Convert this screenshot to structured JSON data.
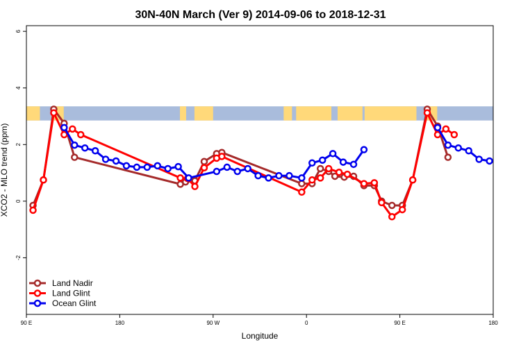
{
  "chart_data": {
    "type": "line",
    "title": "30N-40N March (Ver 9)   2014-09-06 to 2018-12-31",
    "xlabel": "Longitude",
    "ylabel": "XCO2 - MLO trend (ppm)",
    "xlim": [
      90,
      540
    ],
    "ylim": [
      -4,
      6.2
    ],
    "x_ticks": [
      {
        "value": 90,
        "label": "90 E"
      },
      {
        "value": 180,
        "label": "180"
      },
      {
        "value": 270,
        "label": "90 W"
      },
      {
        "value": 360,
        "label": "0"
      },
      {
        "value": 450,
        "label": "90 E"
      },
      {
        "value": 540,
        "label": "180"
      }
    ],
    "y_ticks": [
      {
        "value": -2,
        "label": "-2"
      },
      {
        "value": 0,
        "label": "0"
      },
      {
        "value": 2,
        "label": "2"
      },
      {
        "value": 4,
        "label": "4"
      },
      {
        "value": 6,
        "label": "6"
      }
    ],
    "map_band": {
      "y_range": [
        2.85,
        3.35
      ],
      "ocean_color": "#A9BCDC",
      "land_color": "#FFD97A"
    },
    "legend_position": "bottom-left",
    "series": [
      {
        "name": "Land Nadir",
        "color": "#A52A2A",
        "points": [
          [
            96.4,
            -0.15
          ],
          [
            106.4,
            0.75
          ],
          [
            116.4,
            3.25
          ],
          [
            126.4,
            2.75
          ],
          [
            136.4,
            1.55
          ],
          [
            238.4,
            0.6
          ],
          [
            243.4,
            0.68
          ],
          [
            252.4,
            0.72
          ],
          [
            261.4,
            1.4
          ],
          [
            273.4,
            1.68
          ],
          [
            278.4,
            1.72
          ],
          [
            355.4,
            0.62
          ],
          [
            365.4,
            0.62
          ],
          [
            373.4,
            1.15
          ],
          [
            381.4,
            1.05
          ],
          [
            387.4,
            0.88
          ],
          [
            396.4,
            0.85
          ],
          [
            405.4,
            0.88
          ],
          [
            415.4,
            0.55
          ],
          [
            425.4,
            0.55
          ],
          [
            432.4,
            0.0
          ],
          [
            442.4,
            -0.15
          ],
          [
            452.4,
            -0.15
          ],
          [
            462.4,
            0.75
          ],
          [
            476.4,
            3.25
          ],
          [
            486.4,
            2.65
          ],
          [
            496.4,
            1.55
          ]
        ]
      },
      {
        "name": "Land Glint",
        "color": "#FF0000",
        "points": [
          [
            96.4,
            -0.32
          ],
          [
            106.4,
            0.75
          ],
          [
            116.4,
            3.12
          ],
          [
            126.4,
            2.35
          ],
          [
            134.4,
            2.55
          ],
          [
            142.4,
            2.35
          ],
          [
            238.4,
            0.82
          ],
          [
            245.4,
            0.8
          ],
          [
            252.4,
            0.52
          ],
          [
            261.4,
            1.18
          ],
          [
            273.4,
            1.52
          ],
          [
            278.4,
            1.58
          ],
          [
            355.4,
            0.32
          ],
          [
            365.4,
            0.75
          ],
          [
            373.4,
            0.82
          ],
          [
            381.4,
            1.15
          ],
          [
            391.4,
            1.02
          ],
          [
            399.4,
            0.95
          ],
          [
            415.4,
            0.62
          ],
          [
            425.4,
            0.65
          ],
          [
            432.4,
            -0.05
          ],
          [
            442.4,
            -0.55
          ],
          [
            452.4,
            -0.3
          ],
          [
            462.4,
            0.75
          ],
          [
            476.4,
            3.12
          ],
          [
            486.4,
            2.35
          ],
          [
            494.4,
            2.55
          ],
          [
            502.4,
            2.35
          ]
        ]
      },
      {
        "name": "Ocean Glint",
        "color": "#0000EE",
        "points": [
          [
            126.4,
            2.6
          ],
          [
            136.4,
            1.98
          ],
          [
            146.4,
            1.88
          ],
          [
            156.4,
            1.78
          ],
          [
            166.4,
            1.48
          ],
          [
            176.4,
            1.42
          ],
          [
            186.4,
            1.25
          ],
          [
            196.4,
            1.2
          ],
          [
            206.4,
            1.2
          ],
          [
            216.4,
            1.25
          ],
          [
            226.4,
            1.15
          ],
          [
            236.4,
            1.22
          ],
          [
            246.4,
            0.82
          ],
          [
            273.4,
            1.05
          ],
          [
            283.4,
            1.2
          ],
          [
            293.4,
            1.05
          ],
          [
            303.4,
            1.15
          ],
          [
            313.4,
            0.9
          ],
          [
            323.4,
            0.82
          ],
          [
            333.4,
            0.9
          ],
          [
            343.4,
            0.9
          ],
          [
            355.4,
            0.82
          ],
          [
            365.4,
            1.35
          ],
          [
            375.4,
            1.45
          ],
          [
            385.4,
            1.68
          ],
          [
            395.4,
            1.38
          ],
          [
            405.4,
            1.3
          ],
          [
            415.4,
            1.82
          ]
        ],
        "points_wrap": [
          [
            486.4,
            2.6
          ],
          [
            496.4,
            1.98
          ],
          [
            506.4,
            1.88
          ],
          [
            516.4,
            1.78
          ],
          [
            526.4,
            1.48
          ],
          [
            536.4,
            1.42
          ]
        ]
      }
    ]
  }
}
